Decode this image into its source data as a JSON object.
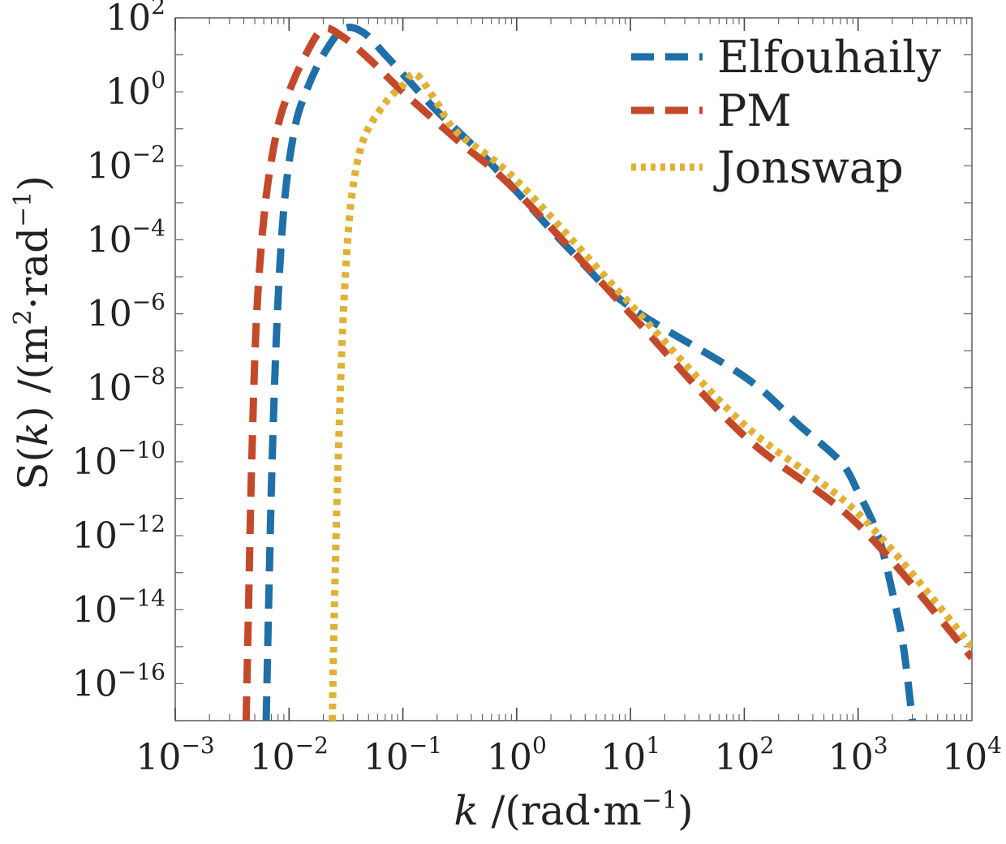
{
  "chart_data": {
    "type": "line",
    "title": "",
    "xlabel": {
      "var": "k",
      "unit_open": " /(rad",
      "dot": "·",
      "unit_m": "m",
      "exp": "−1",
      "close": ")"
    },
    "ylabel": {
      "func": "S(",
      "var": "k",
      "func_close": ")",
      "unit_open": " /(m",
      "exp2": "2",
      "dot": "·",
      "unit_rad": "rad",
      "exp": "−1",
      "close": ")"
    },
    "x_scale": "log",
    "y_scale": "log",
    "xlim": [
      0.001,
      10000
    ],
    "ylim": [
      1e-17,
      100
    ],
    "grid": false,
    "legend_position": "top-right",
    "x_ticks": [
      {
        "base": "10",
        "exp": "−3"
      },
      {
        "base": "10",
        "exp": "−2"
      },
      {
        "base": "10",
        "exp": "−1"
      },
      {
        "base": "10",
        "exp": "0"
      },
      {
        "base": "10",
        "exp": "1"
      },
      {
        "base": "10",
        "exp": "2"
      },
      {
        "base": "10",
        "exp": "3"
      },
      {
        "base": "10",
        "exp": "4"
      }
    ],
    "y_ticks": [
      {
        "base": "10",
        "exp": "2"
      },
      {
        "base": "10",
        "exp": "0"
      },
      {
        "base": "10",
        "exp": "−2"
      },
      {
        "base": "10",
        "exp": "−4"
      },
      {
        "base": "10",
        "exp": "−6"
      },
      {
        "base": "10",
        "exp": "−8"
      },
      {
        "base": "10",
        "exp": "−10"
      },
      {
        "base": "10",
        "exp": "−12"
      },
      {
        "base": "10",
        "exp": "−14"
      },
      {
        "base": "10",
        "exp": "−16"
      }
    ],
    "series": [
      {
        "name": "Elfouhaily",
        "color": "#1f6fa8",
        "style": "dashed",
        "points": [
          [
            0.0063,
            1e-17
          ],
          [
            0.0066,
            1e-14
          ],
          [
            0.0071,
            1e-10
          ],
          [
            0.0079,
            1e-06
          ],
          [
            0.0091,
            0.001
          ],
          [
            0.0112,
            0.1
          ],
          [
            0.0141,
            1
          ],
          [
            0.02,
            10
          ],
          [
            0.03,
            50
          ],
          [
            0.045,
            40
          ],
          [
            0.07,
            10
          ],
          [
            0.1,
            3
          ],
          [
            0.2,
            0.3
          ],
          [
            0.5,
            0.02
          ],
          [
            1,
            0.002
          ],
          [
            3,
            5e-05
          ],
          [
            10,
            1.5e-06
          ],
          [
            100,
            2e-08
          ],
          [
            300,
            1e-09
          ],
          [
            700,
            1e-10
          ],
          [
            1000,
            1.5e-11
          ],
          [
            1500,
            1e-12
          ],
          [
            2000,
            3e-14
          ],
          [
            2500,
            1e-15
          ],
          [
            3000,
            1e-17
          ]
        ]
      },
      {
        "name": "PM",
        "color": "#c4492a",
        "style": "dashed",
        "points": [
          [
            0.0042,
            1e-17
          ],
          [
            0.0044,
            1e-14
          ],
          [
            0.0047,
            1e-10
          ],
          [
            0.0052,
            1e-06
          ],
          [
            0.0062,
            0.001
          ],
          [
            0.0079,
            0.1
          ],
          [
            0.01,
            1
          ],
          [
            0.014,
            10
          ],
          [
            0.02,
            50
          ],
          [
            0.03,
            30
          ],
          [
            0.05,
            8
          ],
          [
            0.1,
            1
          ],
          [
            0.3,
            0.05
          ],
          [
            1,
            0.002
          ],
          [
            10,
            1e-06
          ],
          [
            100,
            5e-10
          ],
          [
            1000,
            2e-12
          ],
          [
            10000,
            5e-16
          ]
        ]
      },
      {
        "name": "Jonswap",
        "color": "#e0b135",
        "style": "dotted",
        "points": [
          [
            0.024,
            1e-17
          ],
          [
            0.025,
            1e-14
          ],
          [
            0.027,
            1e-10
          ],
          [
            0.03,
            1e-06
          ],
          [
            0.035,
            0.001
          ],
          [
            0.045,
            0.05
          ],
          [
            0.07,
            0.5
          ],
          [
            0.1,
            1.5
          ],
          [
            0.13,
            3
          ],
          [
            0.2,
            0.5
          ],
          [
            0.3,
            0.08
          ],
          [
            1,
            0.004
          ],
          [
            10,
            1.8e-06
          ],
          [
            100,
            1e-09
          ],
          [
            1000,
            4e-12
          ],
          [
            10000,
            1e-15
          ]
        ]
      }
    ]
  }
}
